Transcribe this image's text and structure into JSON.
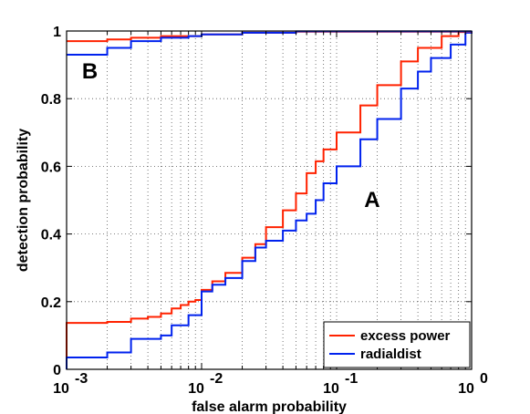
{
  "chart_data": {
    "type": "line",
    "xlabel": "false alarm probability",
    "ylabel": "detection probability",
    "xscale": "log",
    "xlim": [
      0.001,
      1
    ],
    "ylim": [
      0,
      1
    ],
    "grid": true,
    "legend_position": "bottom-right",
    "x_ticks": [
      {
        "value": 0.001,
        "base": "10",
        "exp": "-3"
      },
      {
        "value": 0.01,
        "base": "10",
        "exp": "-2"
      },
      {
        "value": 0.1,
        "base": "10",
        "exp": "-1"
      },
      {
        "value": 1,
        "base": "10",
        "exp": "0"
      }
    ],
    "y_ticks": [
      {
        "value": 0,
        "label": "0"
      },
      {
        "value": 0.2,
        "label": "0.2"
      },
      {
        "value": 0.4,
        "label": "0.4"
      },
      {
        "value": 0.6,
        "label": "0.6"
      },
      {
        "value": 0.8,
        "label": "0.8"
      },
      {
        "value": 1,
        "label": "1"
      }
    ],
    "annotations": [
      {
        "text": "B",
        "x": 0.0013,
        "y": 0.86
      },
      {
        "text": "A",
        "x": 0.16,
        "y": 0.48
      }
    ],
    "series": [
      {
        "name": "excess power",
        "color": "#ff2200",
        "group": "A",
        "points": [
          [
            0.001,
            0.137
          ],
          [
            0.002,
            0.14
          ],
          [
            0.003,
            0.15
          ],
          [
            0.004,
            0.155
          ],
          [
            0.005,
            0.165
          ],
          [
            0.006,
            0.18
          ],
          [
            0.007,
            0.19
          ],
          [
            0.008,
            0.2
          ],
          [
            0.009,
            0.205
          ],
          [
            0.01,
            0.235
          ],
          [
            0.012,
            0.26
          ],
          [
            0.015,
            0.285
          ],
          [
            0.02,
            0.33
          ],
          [
            0.025,
            0.37
          ],
          [
            0.03,
            0.42
          ],
          [
            0.04,
            0.47
          ],
          [
            0.05,
            0.52
          ],
          [
            0.06,
            0.58
          ],
          [
            0.07,
            0.615
          ],
          [
            0.08,
            0.65
          ],
          [
            0.1,
            0.7
          ],
          [
            0.15,
            0.78
          ],
          [
            0.2,
            0.84
          ],
          [
            0.3,
            0.91
          ],
          [
            0.4,
            0.95
          ],
          [
            0.6,
            0.985
          ],
          [
            0.8,
            0.997
          ],
          [
            1,
            1
          ]
        ]
      },
      {
        "name": "radialdist",
        "color": "#0022ee",
        "group": "A",
        "points": [
          [
            0.001,
            0.035
          ],
          [
            0.002,
            0.05
          ],
          [
            0.003,
            0.09
          ],
          [
            0.005,
            0.1
          ],
          [
            0.006,
            0.13
          ],
          [
            0.008,
            0.16
          ],
          [
            0.01,
            0.23
          ],
          [
            0.012,
            0.25
          ],
          [
            0.015,
            0.27
          ],
          [
            0.02,
            0.32
          ],
          [
            0.025,
            0.36
          ],
          [
            0.03,
            0.38
          ],
          [
            0.04,
            0.41
          ],
          [
            0.05,
            0.44
          ],
          [
            0.06,
            0.46
          ],
          [
            0.07,
            0.5
          ],
          [
            0.08,
            0.55
          ],
          [
            0.1,
            0.6
          ],
          [
            0.15,
            0.68
          ],
          [
            0.2,
            0.74
          ],
          [
            0.3,
            0.83
          ],
          [
            0.4,
            0.88
          ],
          [
            0.5,
            0.92
          ],
          [
            0.7,
            0.96
          ],
          [
            0.9,
            0.995
          ],
          [
            1,
            1
          ]
        ]
      },
      {
        "name": "",
        "color": "#ff2200",
        "group": "B",
        "points": [
          [
            0.001,
            0.97
          ],
          [
            0.002,
            0.975
          ],
          [
            0.003,
            0.98
          ],
          [
            0.005,
            0.985
          ],
          [
            0.01,
            0.99
          ],
          [
            0.02,
            0.995
          ],
          [
            0.05,
            0.998
          ],
          [
            1,
            1
          ]
        ]
      },
      {
        "name": "",
        "color": "#0022ee",
        "group": "B",
        "points": [
          [
            0.001,
            0.93
          ],
          [
            0.0015,
            0.93
          ],
          [
            0.002,
            0.95
          ],
          [
            0.003,
            0.97
          ],
          [
            0.005,
            0.98
          ],
          [
            0.008,
            0.985
          ],
          [
            0.01,
            0.99
          ],
          [
            0.02,
            0.995
          ],
          [
            0.05,
            0.999
          ],
          [
            1,
            1
          ]
        ]
      }
    ],
    "legend": [
      {
        "label": "excess power",
        "color": "#ff2200"
      },
      {
        "label": "radialdist",
        "color": "#0022ee"
      }
    ]
  }
}
